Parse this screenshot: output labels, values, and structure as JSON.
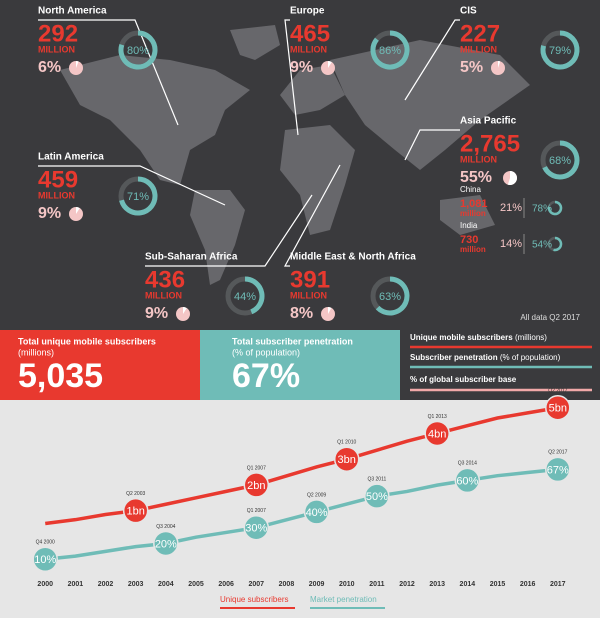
{
  "regions": [
    {
      "name": "North America",
      "subscribers": "292",
      "unit": "MILLION",
      "share": 6,
      "share_label": "6%",
      "penetration": 80,
      "penetration_label": "80%"
    },
    {
      "name": "Europe",
      "subscribers": "465",
      "unit": "MILLION",
      "share": 9,
      "share_label": "9%",
      "penetration": 86,
      "penetration_label": "86%"
    },
    {
      "name": "CIS",
      "subscribers": "227",
      "unit": "MILLION",
      "share": 5,
      "share_label": "5%",
      "penetration": 79,
      "penetration_label": "79%"
    },
    {
      "name": "Asia Pacific",
      "subscribers": "2,765",
      "unit": "MILLION",
      "share": 55,
      "share_label": "55%",
      "penetration": 68,
      "penetration_label": "68%"
    },
    {
      "name": "Latin America",
      "subscribers": "459",
      "unit": "MILLION",
      "share": 9,
      "share_label": "9%",
      "penetration": 71,
      "penetration_label": "71%"
    },
    {
      "name": "Sub-Saharan Africa",
      "subscribers": "436",
      "unit": "MILLION",
      "share": 9,
      "share_label": "9%",
      "penetration": 44,
      "penetration_label": "44%"
    },
    {
      "name": "Middle East & North Africa",
      "subscribers": "391",
      "unit": "MILLION",
      "share": 8,
      "share_label": "8%",
      "penetration": 63,
      "penetration_label": "63%"
    }
  ],
  "countries": [
    {
      "name": "China",
      "subscribers": "1,081",
      "unit": "million",
      "share": "21%",
      "penetration": 78,
      "penetration_label": "78%"
    },
    {
      "name": "India",
      "subscribers": "730",
      "unit": "million",
      "share": "14%",
      "penetration": 54,
      "penetration_label": "54%"
    }
  ],
  "note": "All data Q2 2017",
  "summary": [
    {
      "title": "Total unique mobile subscribers",
      "subtitle": "(millions)",
      "value": "5,035"
    },
    {
      "title": "Total subscriber penetration",
      "subtitle": "(% of population)",
      "value": "67%"
    }
  ],
  "legend": [
    {
      "label": "Unique mobile subscribers",
      "unit": "(millions)"
    },
    {
      "label": "Subscriber penetration",
      "unit": "(% of population)"
    },
    {
      "label": "% of global subscriber base"
    }
  ],
  "chart_data": {
    "type": "line",
    "x": [
      2000,
      2001,
      2002,
      2003,
      2004,
      2005,
      2006,
      2007,
      2008,
      2009,
      2010,
      2011,
      2012,
      2013,
      2014,
      2015,
      2016,
      2017
    ],
    "xlim": [
      1998.5,
      2018.4
    ],
    "ylim": [
      -1.5,
      5.3
    ],
    "y2lim": [
      0,
      111
    ],
    "series": [
      {
        "name": "Unique subscribers",
        "color": "#e8392f",
        "values": [
          0.5,
          0.65,
          0.85,
          1.0,
          1.25,
          1.5,
          1.75,
          2.0,
          2.35,
          2.7,
          3.0,
          3.35,
          3.7,
          4.0,
          4.3,
          4.6,
          4.8,
          5.0
        ],
        "milestones": [
          {
            "x": 2003,
            "value": 1,
            "label": "1bn",
            "period": "Q2 2003"
          },
          {
            "x": 2007,
            "value": 2,
            "label": "2bn",
            "period": "Q1 2007"
          },
          {
            "x": 2010,
            "value": 3,
            "label": "3bn",
            "period": "Q1 2010"
          },
          {
            "x": 2013,
            "value": 4,
            "label": "4bn",
            "period": "Q1 2013"
          },
          {
            "x": 2017,
            "value": 5,
            "label": "5bn",
            "period": "Q2 2017"
          }
        ]
      },
      {
        "name": "Market penetration",
        "color": "#6fbcb7",
        "axis": "y2",
        "values": [
          10,
          12,
          15,
          18,
          20,
          24,
          27,
          30,
          35,
          40,
          45,
          50,
          53,
          57,
          60,
          63,
          65,
          67
        ],
        "milestones": [
          {
            "x": 2000,
            "value": 10,
            "label": "10%",
            "period": "Q4 2000"
          },
          {
            "x": 2004,
            "value": 20,
            "label": "20%",
            "period": "Q3 2004"
          },
          {
            "x": 2007,
            "value": 30,
            "label": "30%",
            "period": "Q1 2007"
          },
          {
            "x": 2009,
            "value": 40,
            "label": "40%",
            "period": "Q2 2009"
          },
          {
            "x": 2011,
            "value": 50,
            "label": "50%",
            "period": "Q3 2011"
          },
          {
            "x": 2014,
            "value": 60,
            "label": "60%",
            "period": "Q3 2014"
          },
          {
            "x": 2017,
            "value": 67,
            "label": "67%",
            "period": "Q2 2017"
          }
        ]
      }
    ]
  }
}
